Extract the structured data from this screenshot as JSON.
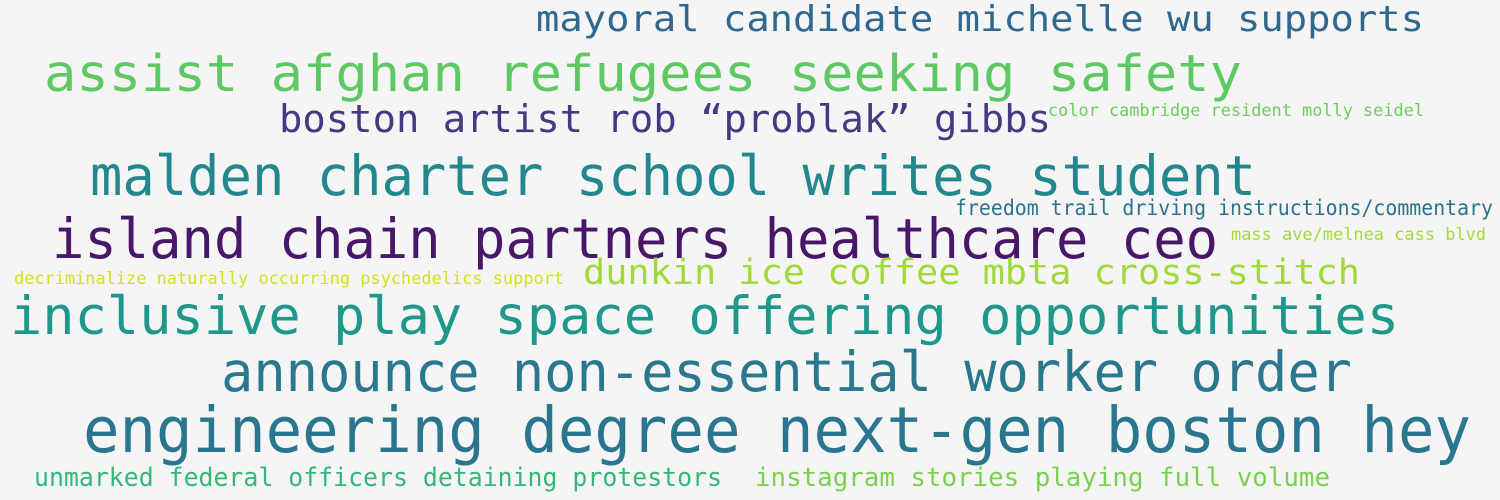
{
  "cloud": {
    "phrases": [
      {
        "text": "mayoral candidate michelle wu supports",
        "color": "#31688e"
      },
      {
        "text": "assist afghan refugees seeking safety",
        "color": "#5ec962"
      },
      {
        "text": "boston artist rob “problak” gibbs",
        "color": "#443983"
      },
      {
        "text": "color cambridge resident molly seidel",
        "color": "#6ccd5a"
      },
      {
        "text": "malden charter school writes student",
        "color": "#23888e"
      },
      {
        "text": "freedom trail driving instructions/commentary",
        "color": "#2c728e"
      },
      {
        "text": "island chain partners healthcare ceo",
        "color": "#481769"
      },
      {
        "text": "mass ave/melnea cass blvd",
        "color": "#a5db36"
      },
      {
        "text": "decriminalize naturally occurring psychedelics support",
        "color": "#d2e21b"
      },
      {
        "text": "dunkin ice coffee mbta cross-stitch",
        "color": "#a0da39"
      },
      {
        "text": "inclusive play space offering opportunities",
        "color": "#1f988b"
      },
      {
        "text": "announce non-essential worker order",
        "color": "#2a788e"
      },
      {
        "text": "engineering degree next-gen boston hey",
        "color": "#2a768e"
      },
      {
        "text": "unmarked federal officers detaining protestors",
        "color": "#35b779"
      },
      {
        "text": "instagram stories playing full volume",
        "color": "#7ad151"
      }
    ]
  }
}
